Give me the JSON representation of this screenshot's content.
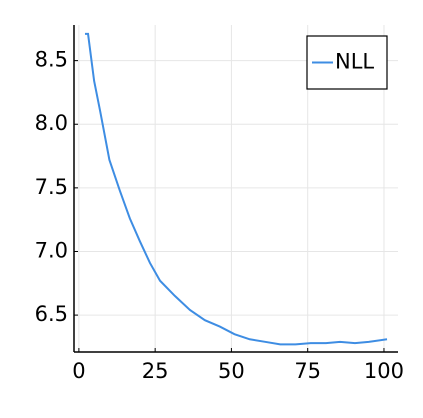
{
  "chart_data": {
    "type": "line",
    "x": [
      2,
      3,
      5,
      7,
      10,
      13.4,
      16.7,
      20,
      23.3,
      26.6,
      31.5,
      36.4,
      41.3,
      46.2,
      51,
      56,
      61,
      66,
      71,
      76,
      81,
      85.6,
      90.5,
      95,
      101
    ],
    "series": [
      {
        "name": "NLL",
        "color": "#3e8de3",
        "values": [
          8.71,
          8.71,
          8.34,
          8.1,
          7.72,
          7.48,
          7.26,
          7.08,
          6.91,
          6.77,
          6.65,
          6.54,
          6.46,
          6.41,
          6.35,
          6.31,
          6.29,
          6.27,
          6.27,
          6.28,
          6.28,
          6.29,
          6.28,
          6.29,
          6.31
        ]
      }
    ],
    "xlim": [
      -1.6,
      104.6
    ],
    "xticks": [
      0,
      25,
      50,
      75,
      100
    ],
    "ylim": [
      6.21,
      8.78
    ],
    "yticks": [
      {
        "value": 6.5,
        "label": "6.5"
      },
      {
        "value": 7,
        "label": "7.0"
      },
      {
        "value": 7.5,
        "label": "7.5"
      },
      {
        "value": 8,
        "label": "8.0"
      },
      {
        "value": 8.5,
        "label": "8.5"
      }
    ],
    "grid": true,
    "legend": "top-right"
  }
}
